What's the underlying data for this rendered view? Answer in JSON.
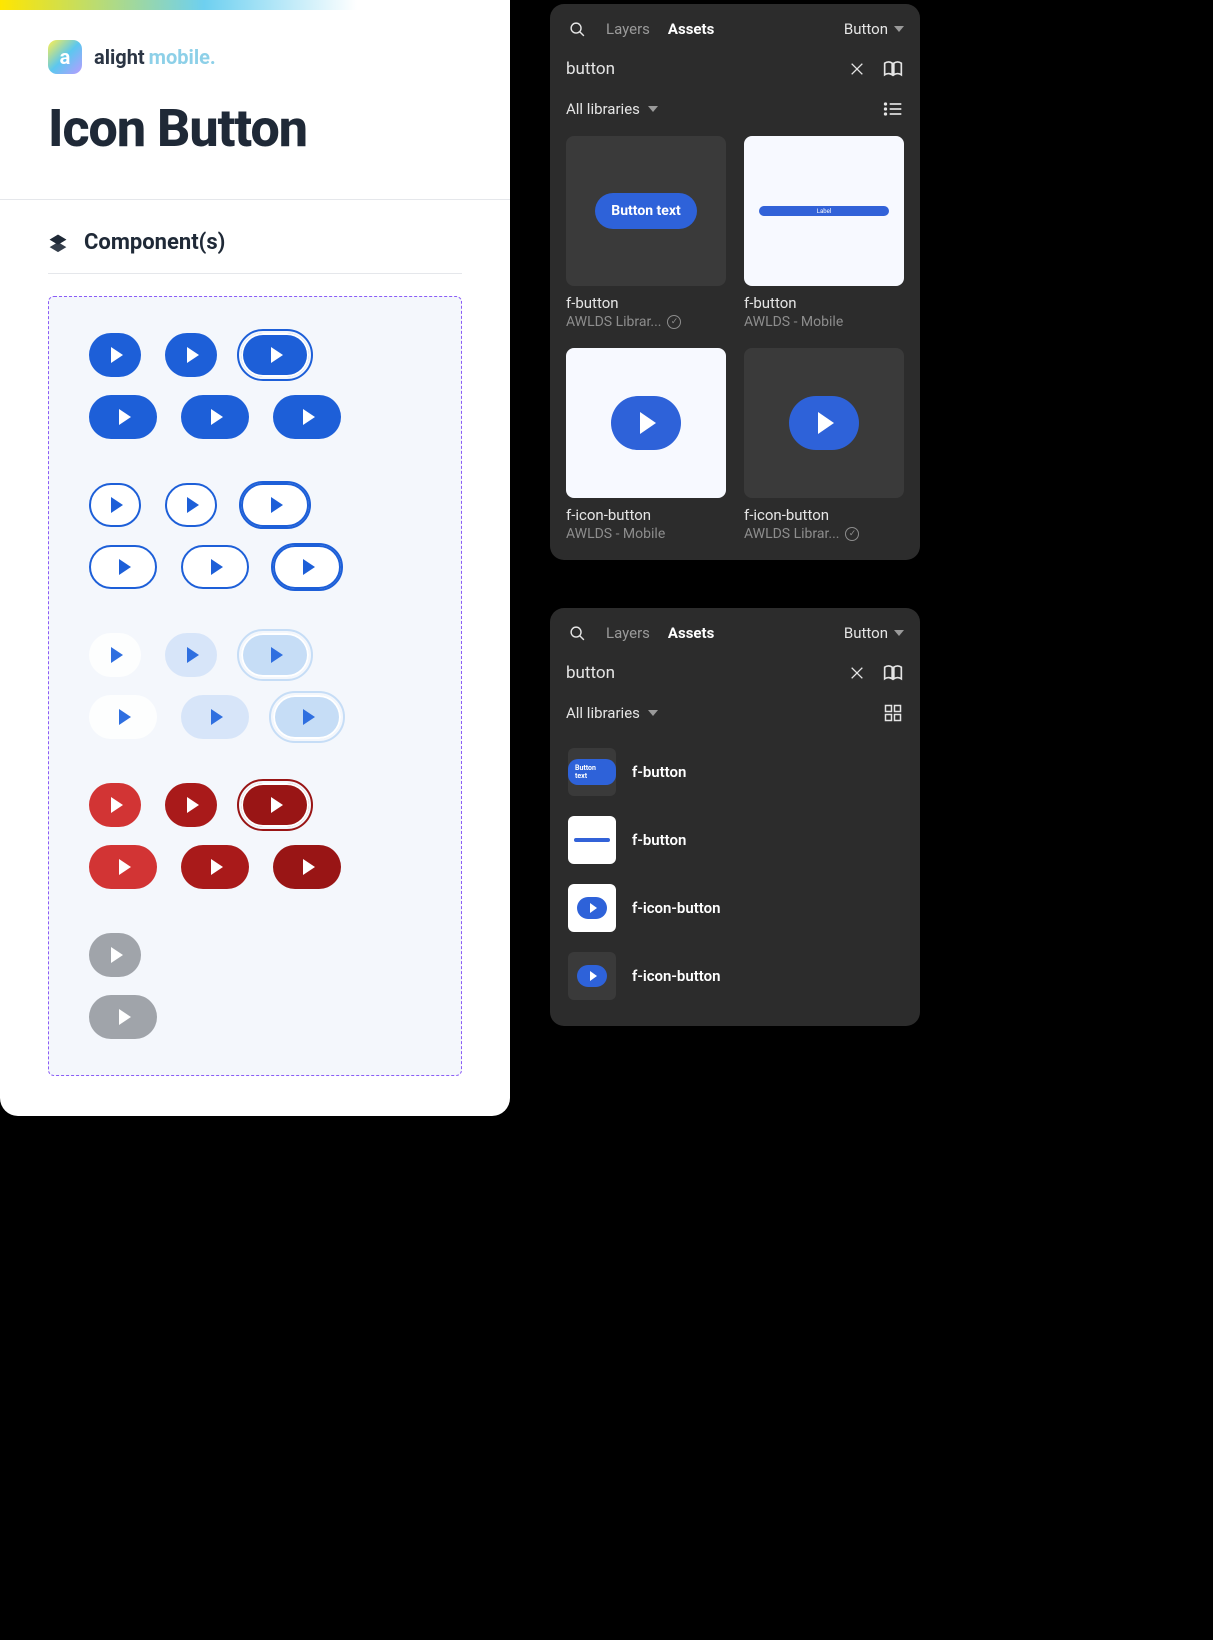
{
  "brand": {
    "name_a": "alight",
    "name_b": "mobile.",
    "logo_letter": "a"
  },
  "page": {
    "title": "Icon Button",
    "section": "Component(s)"
  },
  "colors": {
    "primary": "#1d5fd8",
    "primary_light_1": "#d7e5f9",
    "primary_light_2": "#c6ddf6",
    "danger_1": "#d23434",
    "danger_2": "#a91a1a",
    "danger_3": "#991515",
    "disabled": "#a0a4aa",
    "frame_border": "#8b5cf6",
    "frame_bg": "#f4f7fc",
    "panel_bg": "#2c2c2c"
  },
  "variant_groups": [
    {
      "id": "filled",
      "rows": [
        [
          {
            "size": "sm",
            "style": "g1",
            "play": "w",
            "ring": false
          },
          {
            "size": "sm",
            "style": "g1",
            "play": "w",
            "ring": false
          },
          {
            "size": "lg",
            "style": "g1",
            "play": "w",
            "ring": true
          }
        ],
        [
          {
            "size": "lg",
            "style": "g1",
            "play": "w",
            "ring": false
          },
          {
            "size": "lg",
            "style": "g1",
            "play": "w",
            "ring": false
          },
          {
            "size": "lg",
            "style": "g1",
            "play": "w",
            "ring": false
          }
        ]
      ]
    },
    {
      "id": "outline",
      "rows": [
        [
          {
            "size": "sm",
            "style": "g2",
            "play": "b",
            "ring": false
          },
          {
            "size": "sm",
            "style": "g2",
            "play": "b",
            "ring": false
          },
          {
            "size": "lg",
            "style": "g2",
            "play": "b",
            "ring": true
          }
        ],
        [
          {
            "size": "lg",
            "style": "g2",
            "play": "b",
            "ring": false
          },
          {
            "size": "lg",
            "style": "g2",
            "play": "b",
            "ring": false
          },
          {
            "size": "lg",
            "style": "g2",
            "play": "b",
            "ring": true
          }
        ]
      ]
    },
    {
      "id": "ghost",
      "rows": [
        [
          {
            "size": "sm",
            "style": "g3a",
            "play": "lb",
            "ring": false
          },
          {
            "size": "sm",
            "style": "g3b",
            "play": "lb",
            "ring": false
          },
          {
            "size": "lg",
            "style": "g3c",
            "play": "lb",
            "ring": true
          }
        ],
        [
          {
            "size": "lg",
            "style": "g3a",
            "play": "lb",
            "ring": false
          },
          {
            "size": "lg",
            "style": "g3b",
            "play": "lb",
            "ring": false
          },
          {
            "size": "lg",
            "style": "g3c",
            "play": "lb",
            "ring": true
          }
        ]
      ]
    },
    {
      "id": "danger",
      "rows": [
        [
          {
            "size": "sm",
            "style": "g4a",
            "play": "w",
            "ring": false
          },
          {
            "size": "sm",
            "style": "g4b",
            "play": "w",
            "ring": false
          },
          {
            "size": "lg",
            "style": "g4c",
            "play": "w",
            "ring": true
          }
        ],
        [
          {
            "size": "lg",
            "style": "g4a",
            "play": "w",
            "ring": false
          },
          {
            "size": "lg",
            "style": "g4b",
            "play": "w",
            "ring": false
          },
          {
            "size": "lg",
            "style": "g4c",
            "play": "w",
            "ring": false
          }
        ]
      ]
    },
    {
      "id": "disabled",
      "rows": [
        [
          {
            "size": "sm",
            "style": "g5",
            "play": "w",
            "ring": false
          }
        ],
        [
          {
            "size": "lg",
            "style": "g5",
            "play": "w",
            "ring": false
          }
        ]
      ]
    }
  ],
  "figma": {
    "tabs": {
      "layers": "Layers",
      "assets": "Assets"
    },
    "page_selector": "Button",
    "search_value": "button",
    "libraries_label": "All libraries",
    "grid_cards": [
      {
        "name": "f-button",
        "lib": "AWLDS Librar...",
        "verified": true,
        "thumb": "button-text",
        "thumb_label": "Button text",
        "thumb_bg": "dark"
      },
      {
        "name": "f-button",
        "lib": "AWLDS - Mobile",
        "verified": false,
        "thumb": "bar",
        "thumb_label": "Label",
        "thumb_bg": "light"
      },
      {
        "name": "f-icon-button",
        "lib": "AWLDS - Mobile",
        "verified": false,
        "thumb": "play",
        "thumb_bg": "light"
      },
      {
        "name": "f-icon-button",
        "lib": "AWLDS Librar...",
        "verified": true,
        "thumb": "play",
        "thumb_bg": "dark"
      }
    ],
    "list_items": [
      {
        "name": "f-button",
        "thumb": "button-text",
        "thumb_bg": "dark"
      },
      {
        "name": "f-button",
        "thumb": "bar",
        "thumb_bg": "light"
      },
      {
        "name": "f-icon-button",
        "thumb": "play",
        "thumb_bg": "light"
      },
      {
        "name": "f-icon-button",
        "thumb": "play",
        "thumb_bg": "dark"
      }
    ]
  }
}
